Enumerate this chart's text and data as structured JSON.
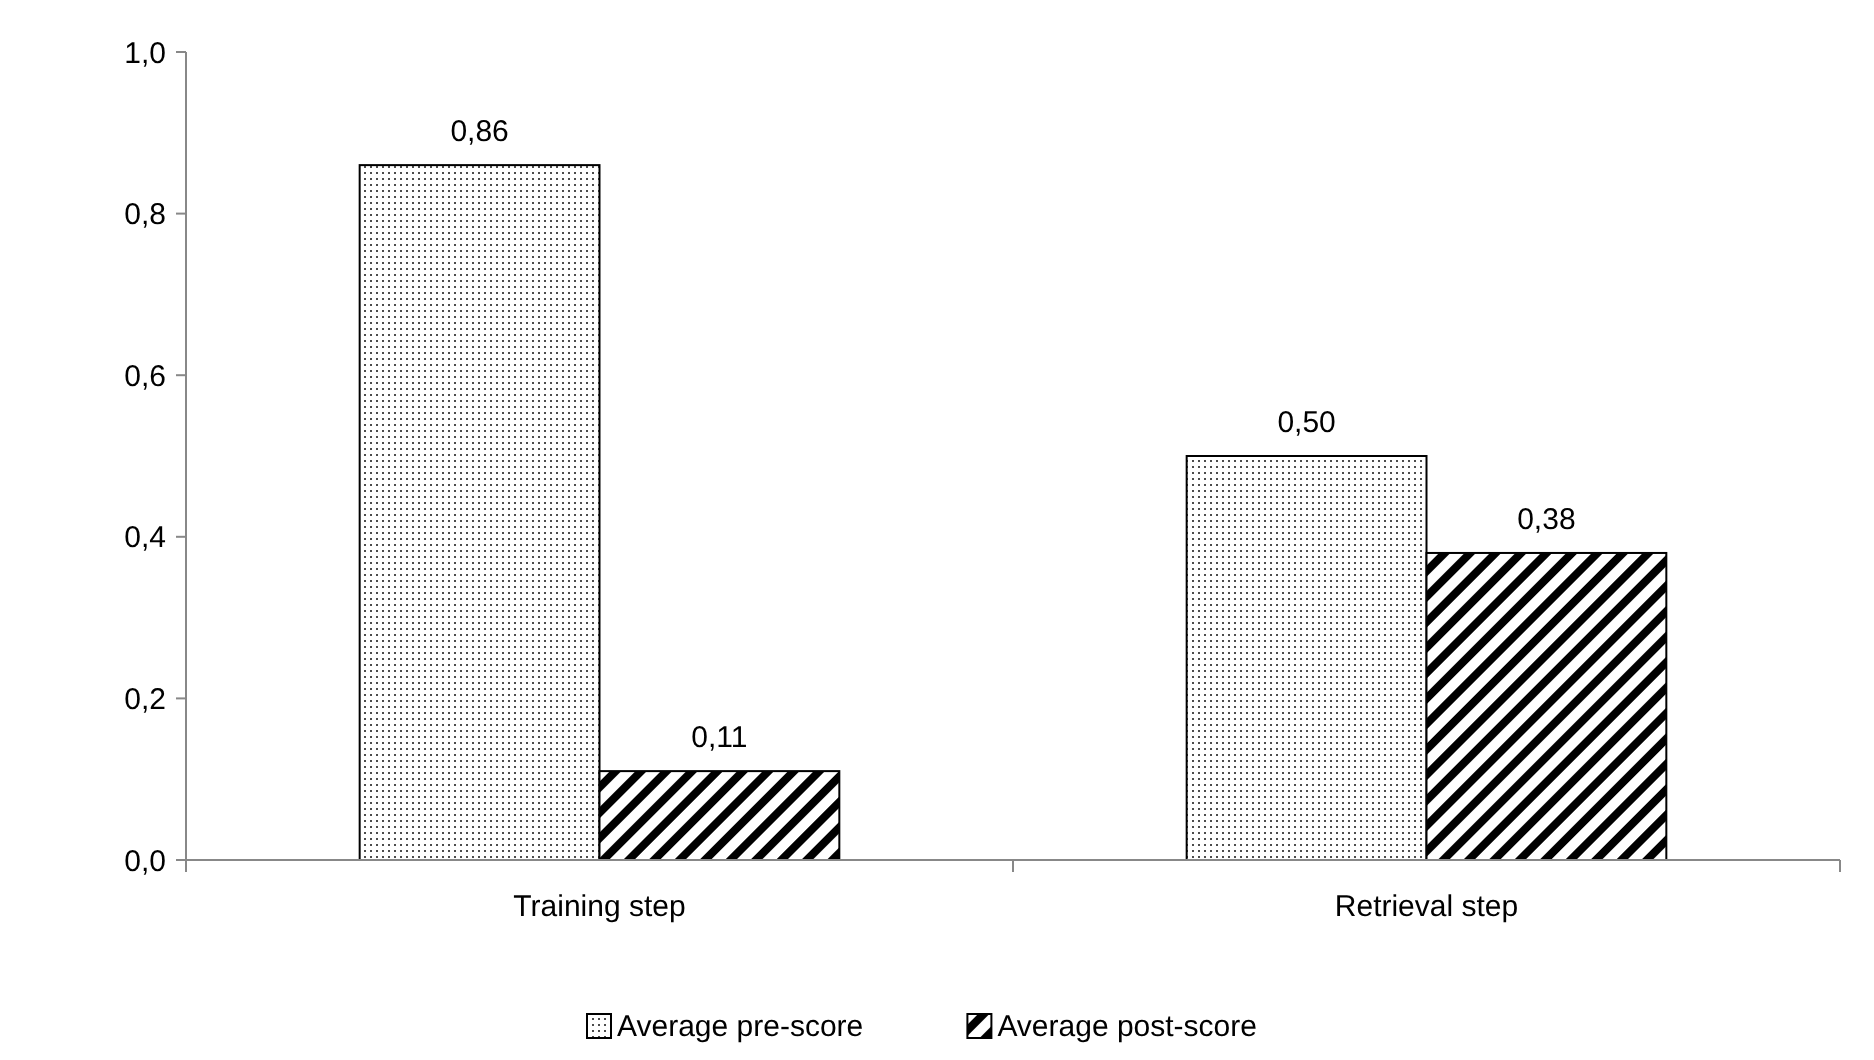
{
  "chart_data": {
    "type": "bar",
    "categories": [
      "Training step",
      "Retrieval step"
    ],
    "series": [
      {
        "name": "Average pre-score",
        "color": "#000000",
        "values": [
          0.86,
          0.5
        ],
        "value_labels": [
          "0,86",
          "0,50"
        ]
      },
      {
        "name": "Average post-score",
        "color": "#000000",
        "values": [
          0.11,
          0.38
        ],
        "value_labels": [
          "0,11",
          "0,38"
        ]
      }
    ],
    "ylim": [
      0,
      1
    ],
    "yticks": [
      {
        "value": 0,
        "label": "0,0"
      },
      {
        "value": 0.2,
        "label": "0,2"
      },
      {
        "value": 0.4,
        "label": "0,4"
      },
      {
        "value": 0.6,
        "label": "0,6"
      },
      {
        "value": 0.8,
        "label": "0,8"
      },
      {
        "value": 1,
        "label": "1,0"
      }
    ],
    "grid": false,
    "legend": "bottom"
  }
}
